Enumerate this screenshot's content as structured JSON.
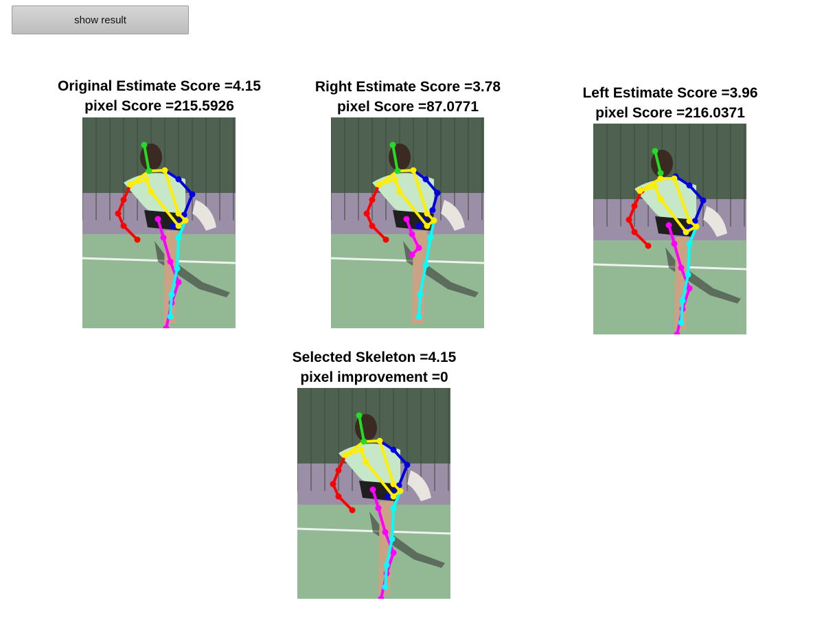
{
  "toolbar": {
    "show_result_label": "show result"
  },
  "panels": [
    {
      "title": "Original Estimate Score =4.15",
      "subtitle": "pixel Score =215.5926",
      "variant": "original"
    },
    {
      "title": "Right Estimate Score =3.78",
      "subtitle": "pixel Score =87.0771",
      "variant": "right"
    },
    {
      "title": "Left Estimate Score =3.96",
      "subtitle": "pixel Score =216.0371",
      "variant": "left"
    },
    {
      "title": "Selected Skeleton =4.15",
      "subtitle": "pixel improvement =0",
      "variant": "selected"
    }
  ],
  "colors": {
    "head": "#22dd22",
    "torso": "#ffee00",
    "left_arm": "#ff0000",
    "right_arm": "#0000dd",
    "left_leg": "#ff00ff",
    "right_leg": "#00ffff"
  }
}
